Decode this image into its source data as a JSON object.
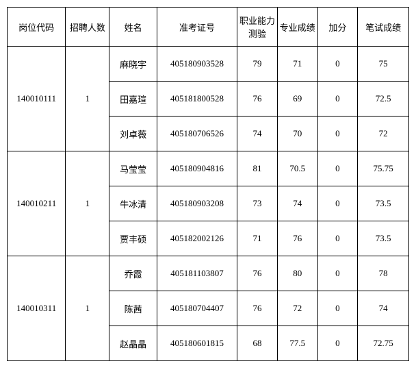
{
  "headers": {
    "post_code": "岗位代码",
    "recruit_count": "招聘人数",
    "name": "姓名",
    "exam_no": "准考证号",
    "ability": "职业能力测验",
    "major": "专业成绩",
    "bonus": "加分",
    "written": "笔试成绩"
  },
  "groups": [
    {
      "post_code": "140010111",
      "recruit_count": "1",
      "rows": [
        {
          "name": "麻晓宇",
          "exam_no": "405180903528",
          "ability": "79",
          "major": "71",
          "bonus": "0",
          "written": "75"
        },
        {
          "name": "田嘉瑄",
          "exam_no": "405181800528",
          "ability": "76",
          "major": "69",
          "bonus": "0",
          "written": "72.5"
        },
        {
          "name": "刘卓薇",
          "exam_no": "405180706526",
          "ability": "74",
          "major": "70",
          "bonus": "0",
          "written": "72"
        }
      ]
    },
    {
      "post_code": "140010211",
      "recruit_count": "1",
      "rows": [
        {
          "name": "马莹莹",
          "exam_no": "405180904816",
          "ability": "81",
          "major": "70.5",
          "bonus": "0",
          "written": "75.75"
        },
        {
          "name": "牛冰清",
          "exam_no": "405180903208",
          "ability": "73",
          "major": "74",
          "bonus": "0",
          "written": "73.5"
        },
        {
          "name": "贾丰硕",
          "exam_no": "405182002126",
          "ability": "71",
          "major": "76",
          "bonus": "0",
          "written": "73.5"
        }
      ]
    },
    {
      "post_code": "140010311",
      "recruit_count": "1",
      "rows": [
        {
          "name": "乔霞",
          "exam_no": "405181103807",
          "ability": "76",
          "major": "80",
          "bonus": "0",
          "written": "78"
        },
        {
          "name": "陈茜",
          "exam_no": "405180704407",
          "ability": "76",
          "major": "72",
          "bonus": "0",
          "written": "74"
        },
        {
          "name": "赵晶晶",
          "exam_no": "405180601815",
          "ability": "68",
          "major": "77.5",
          "bonus": "0",
          "written": "72.75"
        }
      ]
    }
  ]
}
